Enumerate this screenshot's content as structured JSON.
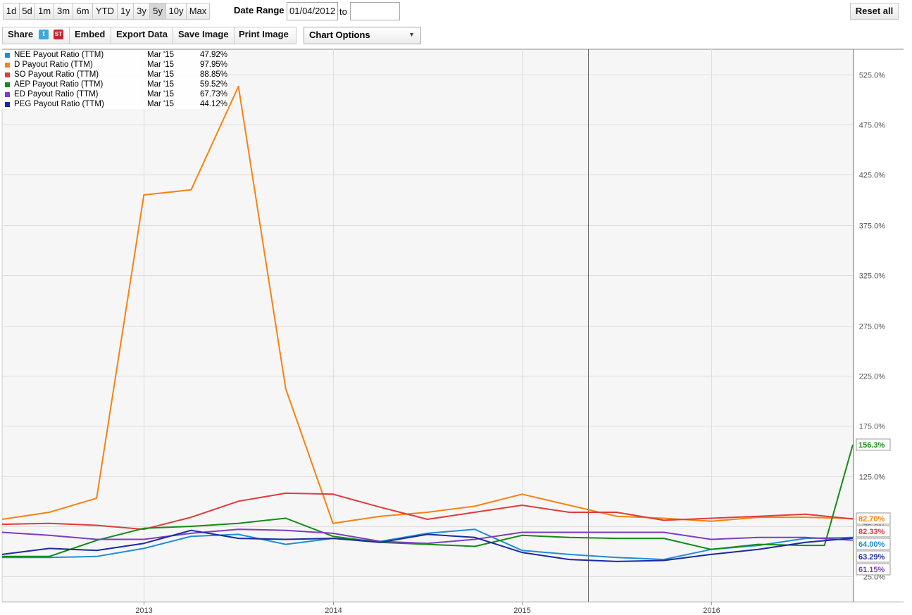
{
  "toolbar": {
    "ranges": [
      "1d",
      "5d",
      "1m",
      "3m",
      "6m",
      "YTD",
      "1y",
      "3y",
      "5y",
      "10y",
      "Max"
    ],
    "active_range": "5y",
    "date_range_label": "Date Range",
    "date_from": "01/04/2012",
    "date_to": "",
    "to_label": "to",
    "reset_label": "Reset all",
    "share_label": "Share",
    "embed_label": "Embed",
    "export_label": "Export Data",
    "save_label": "Save Image",
    "print_label": "Print Image",
    "chart_options_label": "Chart Options"
  },
  "legend": [
    {
      "name": "NEE Payout Ratio (TTM)",
      "date": "Mar '15",
      "value": "47.92%",
      "color": "#1f8dd6"
    },
    {
      "name": "D Payout Ratio (TTM)",
      "date": "Mar '15",
      "value": "97.95%",
      "color": "#f7820f"
    },
    {
      "name": "SO Payout Ratio (TTM)",
      "date": "Mar '15",
      "value": "88.85%",
      "color": "#e03b3b"
    },
    {
      "name": "AEP Payout Ratio (TTM)",
      "date": "Mar '15",
      "value": "59.52%",
      "color": "#168a16"
    },
    {
      "name": "ED Payout Ratio (TTM)",
      "date": "Mar '15",
      "value": "67.73%",
      "color": "#7b3fbf"
    },
    {
      "name": "PEG Payout Ratio (TTM)",
      "date": "Mar '15",
      "value": "44.12%",
      "color": "#1a2aa0"
    }
  ],
  "chart_data": {
    "type": "line",
    "x_range": [
      2012.25,
      2016.75
    ],
    "ylim": [
      0,
      550
    ],
    "y_ticks": [
      25,
      75,
      125,
      175,
      225,
      275,
      325,
      375,
      425,
      475,
      525
    ],
    "y_tick_labels": [
      "25.0%",
      "75.0%",
      "125.0%",
      "175.0%",
      "225.0%",
      "275.0%",
      "325.0%",
      "375.0%",
      "425.0%",
      "475.0%",
      "525.0%"
    ],
    "x_ticks": [
      2013,
      2014,
      2015,
      2016
    ],
    "x_tick_labels": [
      "2013",
      "2014",
      "2015",
      "2016"
    ],
    "cursor_x": 2015.35,
    "series": [
      {
        "name": "NEE Payout Ratio (TTM)",
        "color": "#1f8dd6",
        "x": [
          2012.25,
          2012.5,
          2012.75,
          2013.0,
          2013.25,
          2013.5,
          2013.75,
          2014.0,
          2014.25,
          2014.5,
          2014.75,
          2015.0,
          2015.25,
          2015.5,
          2015.75,
          2016.0,
          2016.25,
          2016.5,
          2016.75
        ],
        "y": [
          44,
          44,
          45,
          53,
          65,
          67,
          57,
          63,
          60,
          68,
          72,
          51,
          47,
          44,
          42,
          52,
          56,
          63,
          64
        ],
        "end_label": "64.00%"
      },
      {
        "name": "D Payout Ratio (TTM)",
        "color": "#f7820f",
        "x": [
          2012.25,
          2012.5,
          2012.75,
          2013.0,
          2013.25,
          2013.5,
          2013.75,
          2014.0,
          2014.25,
          2014.5,
          2014.75,
          2015.0,
          2015.25,
          2015.5,
          2015.75,
          2016.0,
          2016.25,
          2016.5,
          2016.75
        ],
        "y": [
          82,
          89,
          103,
          405,
          410,
          513,
          212,
          78,
          85,
          89,
          95,
          107,
          96,
          85,
          83,
          80,
          84,
          84,
          82.7
        ],
        "end_label": "82.70%"
      },
      {
        "name": "SO Payout Ratio (TTM)",
        "color": "#e03b3b",
        "x": [
          2012.25,
          2012.5,
          2012.75,
          2013.0,
          2013.25,
          2013.5,
          2013.75,
          2014.0,
          2014.25,
          2014.5,
          2014.75,
          2015.0,
          2015.25,
          2015.5,
          2015.75,
          2016.0,
          2016.25,
          2016.5,
          2016.75
        ],
        "y": [
          77,
          78,
          76,
          72,
          84,
          100,
          108,
          107,
          94,
          82,
          89,
          96,
          89,
          89,
          81,
          83,
          85,
          87,
          82.33
        ],
        "end_label": "82.33%"
      },
      {
        "name": "AEP Payout Ratio (TTM)",
        "color": "#168a16",
        "x": [
          2012.25,
          2012.5,
          2012.75,
          2013.0,
          2013.25,
          2013.5,
          2013.75,
          2014.0,
          2014.25,
          2014.5,
          2014.75,
          2015.0,
          2015.25,
          2015.5,
          2015.75,
          2016.0,
          2016.25,
          2016.5,
          2016.6,
          2016.75
        ],
        "y": [
          45,
          45,
          61,
          73,
          75,
          78,
          83,
          65,
          59,
          57,
          55,
          66,
          64,
          63,
          63,
          52,
          57,
          56,
          56,
          156.3
        ],
        "end_label": "156.3%"
      },
      {
        "name": "ED Payout Ratio (TTM)",
        "color": "#7b3fbf",
        "x": [
          2012.25,
          2012.5,
          2012.75,
          2013.0,
          2013.25,
          2013.5,
          2013.75,
          2014.0,
          2014.25,
          2014.5,
          2014.75,
          2015.0,
          2015.25,
          2015.5,
          2015.75,
          2016.0,
          2016.25,
          2016.5,
          2016.75
        ],
        "y": [
          69,
          66,
          62,
          62,
          68,
          72,
          71,
          68,
          60,
          58,
          62,
          69,
          69,
          69,
          69,
          62,
          64,
          64,
          61.15
        ],
        "end_label": "61.15%"
      },
      {
        "name": "PEG Payout Ratio (TTM)",
        "color": "#1a2aa0",
        "x": [
          2012.25,
          2012.5,
          2012.75,
          2013.0,
          2013.25,
          2013.5,
          2013.75,
          2014.0,
          2014.25,
          2014.5,
          2014.75,
          2015.0,
          2015.25,
          2015.5,
          2015.75,
          2016.0,
          2016.25,
          2016.5,
          2016.75
        ],
        "y": [
          47,
          53,
          51,
          58,
          71,
          63,
          62,
          63,
          59,
          67,
          64,
          49,
          42,
          40,
          41,
          47,
          52,
          59,
          63.29
        ],
        "end_label": "63.29%"
      }
    ]
  }
}
